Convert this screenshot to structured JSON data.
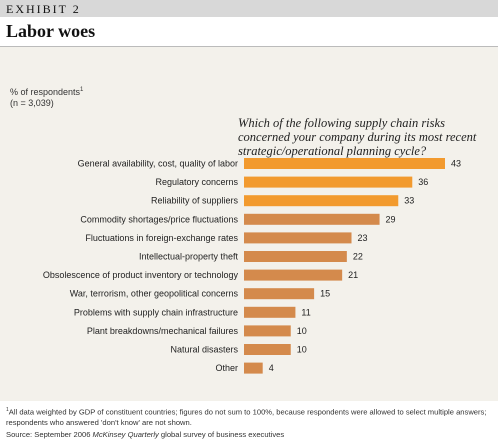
{
  "exhibit_label": "EXHIBIT 2",
  "title": "Labor woes",
  "unit_label": "% of respondents",
  "unit_footnote_mark": "1",
  "sample_size": "(n = 3,039)",
  "question": "Which of the following supply chain risks concerned your company during its most recent strategic/operational planning cycle?",
  "colors": {
    "highlight": "#f29a2e",
    "bar": "#d48a4c",
    "background": "#f3f1eb",
    "header_bar": "#d8d8d8"
  },
  "chart_data": {
    "type": "bar",
    "orientation": "horizontal",
    "title": "Labor woes",
    "categories": [
      "General availability, cost, quality of labor",
      "Regulatory concerns",
      "Reliability of suppliers",
      "Commodity shortages/price fluctuations",
      "Fluctuations in foreign-exchange rates",
      "Intellectual-property theft",
      "Obsolescence of product inventory or technology",
      "War, terrorism, other geopolitical concerns",
      "Problems with supply chain infrastructure",
      "Plant breakdowns/mechanical failures",
      "Natural disasters",
      "Other"
    ],
    "values": [
      43,
      36,
      33,
      29,
      23,
      22,
      21,
      15,
      11,
      10,
      10,
      4
    ],
    "highlighted": [
      true,
      true,
      true,
      false,
      false,
      false,
      false,
      false,
      false,
      false,
      false,
      false
    ],
    "data_labels": [
      "43",
      "36",
      "33",
      "29",
      "23",
      "22",
      "21",
      "15",
      "11",
      "10",
      "10",
      "4"
    ],
    "xlim": [
      0,
      43
    ],
    "grid": false,
    "legend": "none"
  },
  "footnote": {
    "mark": "1",
    "text": "All data weighted by GDP of constituent countries; figures do not sum to 100%, because respondents were allowed to select multiple answers; respondents who answered 'don't know' are not shown."
  },
  "source": {
    "prefix": "Source: September 2006 ",
    "publication": "McKinsey Quarterly",
    "suffix": " global survey of business executives"
  }
}
